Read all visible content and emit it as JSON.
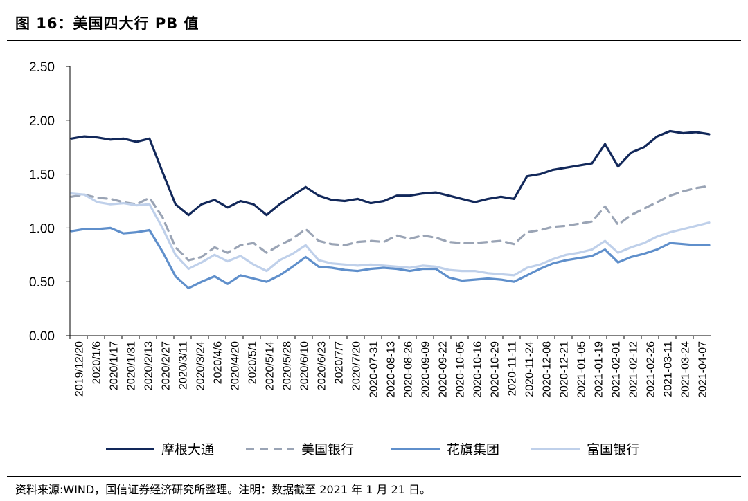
{
  "title": "图 16：美国四大行 PB 值",
  "footer": "资料来源:WIND，国信证券经济研究所整理。注明：数据截至 2021 年 1 月 21 日。",
  "chart_data": {
    "type": "line",
    "ylim": [
      0,
      2.5
    ],
    "yticks": [
      "0.00",
      "0.50",
      "1.00",
      "1.50",
      "2.00",
      "2.50"
    ],
    "x_tick_labels": [
      "2019/12/20",
      "2020/1/6",
      "2020/1/17",
      "2020/1/31",
      "2020/2/13",
      "2020/2/27",
      "2020/3/11",
      "2020/3/24",
      "2020/4/6",
      "2020/4/20",
      "2020/5/1",
      "2020/5/14",
      "2020/5/28",
      "2020/6/10",
      "2020/6/23",
      "2020/7/7",
      "2020/7/20",
      "2020-07-31",
      "2020-08-13",
      "2020-08-26",
      "2020-09-09",
      "2020-09-22",
      "2020-10-05",
      "2020-10-16",
      "2020-10-29",
      "2020-11-11",
      "2020-11-24",
      "2020-12-08",
      "2020-12-21",
      "2021-01-05",
      "2021-01-19",
      "2021-02-01",
      "2021-02-12",
      "2021-02-26",
      "2021-03-11",
      "2021-03-24",
      "2021-04-07"
    ],
    "grid": false,
    "legend_position": "bottom",
    "series": [
      {
        "name": "摩根大通",
        "color": "#12285a",
        "dash": "solid",
        "values": [
          1.83,
          1.85,
          1.84,
          1.82,
          1.83,
          1.8,
          1.83,
          1.52,
          1.22,
          1.12,
          1.22,
          1.26,
          1.19,
          1.25,
          1.22,
          1.12,
          1.22,
          1.3,
          1.38,
          1.3,
          1.26,
          1.25,
          1.27,
          1.23,
          1.25,
          1.3,
          1.3,
          1.32,
          1.33,
          1.3,
          1.27,
          1.24,
          1.27,
          1.29,
          1.27,
          1.48,
          1.5,
          1.54,
          1.56,
          1.58,
          1.6,
          1.78,
          1.57,
          1.7,
          1.75,
          1.85,
          1.9,
          1.88,
          1.89,
          1.87
        ]
      },
      {
        "name": "美国银行",
        "color": "#9aa4b5",
        "dash": "dash",
        "values": [
          1.29,
          1.31,
          1.28,
          1.27,
          1.24,
          1.22,
          1.28,
          1.1,
          0.82,
          0.7,
          0.73,
          0.82,
          0.77,
          0.84,
          0.86,
          0.77,
          0.84,
          0.9,
          0.99,
          0.88,
          0.85,
          0.84,
          0.87,
          0.88,
          0.87,
          0.93,
          0.9,
          0.93,
          0.91,
          0.87,
          0.86,
          0.86,
          0.87,
          0.88,
          0.85,
          0.96,
          0.98,
          1.01,
          1.02,
          1.04,
          1.06,
          1.2,
          1.03,
          1.12,
          1.18,
          1.24,
          1.3,
          1.34,
          1.37,
          1.39
        ]
      },
      {
        "name": "花旗集团",
        "color": "#5f8fcb",
        "dash": "solid",
        "values": [
          0.97,
          0.99,
          0.99,
          1.0,
          0.95,
          0.96,
          0.98,
          0.78,
          0.55,
          0.44,
          0.5,
          0.55,
          0.48,
          0.56,
          0.53,
          0.5,
          0.56,
          0.64,
          0.73,
          0.64,
          0.63,
          0.61,
          0.6,
          0.62,
          0.63,
          0.62,
          0.6,
          0.62,
          0.62,
          0.54,
          0.51,
          0.52,
          0.53,
          0.52,
          0.5,
          0.56,
          0.62,
          0.67,
          0.7,
          0.72,
          0.74,
          0.8,
          0.68,
          0.73,
          0.76,
          0.8,
          0.86,
          0.85,
          0.84,
          0.84
        ]
      },
      {
        "name": "富国银行",
        "color": "#bfd0ea",
        "dash": "solid",
        "values": [
          1.32,
          1.31,
          1.24,
          1.22,
          1.23,
          1.21,
          1.22,
          1.0,
          0.75,
          0.62,
          0.68,
          0.75,
          0.69,
          0.74,
          0.66,
          0.6,
          0.7,
          0.76,
          0.84,
          0.7,
          0.67,
          0.66,
          0.65,
          0.66,
          0.65,
          0.64,
          0.63,
          0.65,
          0.64,
          0.61,
          0.6,
          0.6,
          0.58,
          0.57,
          0.56,
          0.63,
          0.66,
          0.71,
          0.75,
          0.77,
          0.8,
          0.88,
          0.77,
          0.82,
          0.86,
          0.92,
          0.96,
          0.99,
          1.02,
          1.05
        ]
      }
    ]
  }
}
